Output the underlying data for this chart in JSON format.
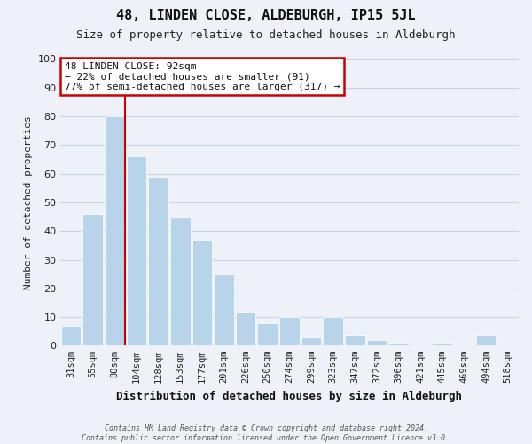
{
  "title": "48, LINDEN CLOSE, ALDEBURGH, IP15 5JL",
  "subtitle": "Size of property relative to detached houses in Aldeburgh",
  "xlabel": "Distribution of detached houses by size in Aldeburgh",
  "ylabel": "Number of detached properties",
  "bar_labels": [
    "31sqm",
    "55sqm",
    "80sqm",
    "104sqm",
    "128sqm",
    "153sqm",
    "177sqm",
    "201sqm",
    "226sqm",
    "250sqm",
    "274sqm",
    "299sqm",
    "323sqm",
    "347sqm",
    "372sqm",
    "396sqm",
    "421sqm",
    "445sqm",
    "469sqm",
    "494sqm",
    "518sqm"
  ],
  "bar_values": [
    7,
    46,
    80,
    66,
    59,
    45,
    37,
    25,
    12,
    8,
    10,
    3,
    10,
    4,
    2,
    1,
    0,
    1,
    0,
    4,
    0
  ],
  "bar_color": "#b8d4ea",
  "marker_line_color": "#cc0000",
  "marker_label": "48 LINDEN CLOSE: 92sqm",
  "annotation_line1": "← 22% of detached houses are smaller (91)",
  "annotation_line2": "77% of semi-detached houses are larger (317) →",
  "annotation_box_color": "#ffffff",
  "annotation_box_edgecolor": "#cc0000",
  "ylim": [
    0,
    100
  ],
  "yticks": [
    0,
    10,
    20,
    30,
    40,
    50,
    60,
    70,
    80,
    90,
    100
  ],
  "grid_color": "#c8d4e4",
  "footer_line1": "Contains HM Land Registry data © Crown copyright and database right 2024.",
  "footer_line2": "Contains public sector information licensed under the Open Government Licence v3.0.",
  "bg_color": "#eef2f8",
  "title_fontsize": 11,
  "subtitle_fontsize": 9,
  "xlabel_fontsize": 9,
  "ylabel_fontsize": 8,
  "tick_fontsize": 7.5,
  "ytick_fontsize": 8,
  "footer_fontsize": 6,
  "annot_fontsize": 8
}
